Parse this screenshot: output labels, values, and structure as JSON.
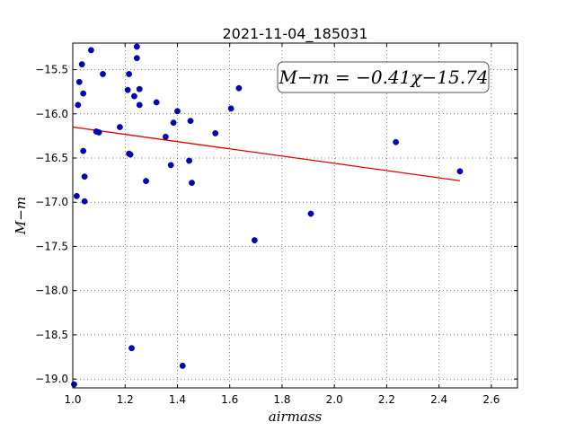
{
  "chart_data": {
    "type": "scatter",
    "title": "2021-11-04_185031",
    "xlabel": "airmass",
    "ylabel": "M−m",
    "xlim": [
      1.0,
      2.7
    ],
    "ylim": [
      -19.1,
      -15.2
    ],
    "y_inverted": true,
    "grid": true,
    "x_ticks": [
      "1.0",
      "1.2",
      "1.4",
      "1.6",
      "1.8",
      "2.0",
      "2.2",
      "2.4",
      "2.6"
    ],
    "x_tick_values": [
      1.0,
      1.2,
      1.4,
      1.6,
      1.8,
      2.0,
      2.2,
      2.4,
      2.6
    ],
    "y_ticks": [
      "−15.5",
      "−16.0",
      "−16.5",
      "−17.0",
      "−17.5",
      "−18.0",
      "−18.5",
      "−19.0"
    ],
    "y_tick_values": [
      -15.5,
      -16.0,
      -16.5,
      -17.0,
      -17.5,
      -18.0,
      -18.5,
      -19.0
    ],
    "annotation": "M−m = −0.41χ−15.74",
    "annotation_placement": "top-right",
    "point_color": "#0000cc",
    "fit_color": "#e00000",
    "fit": {
      "slope": -0.41,
      "intercept": -15.74,
      "x_range": [
        1.0,
        2.48
      ]
    },
    "x": [
      1.005,
      1.015,
      1.02,
      1.025,
      1.035,
      1.04,
      1.04,
      1.045,
      1.045,
      1.07,
      1.09,
      1.1,
      1.115,
      1.18,
      1.21,
      1.215,
      1.215,
      1.22,
      1.225,
      1.235,
      1.245,
      1.245,
      1.255,
      1.255,
      1.28,
      1.32,
      1.355,
      1.375,
      1.385,
      1.4,
      1.42,
      1.445,
      1.45,
      1.455,
      1.545,
      1.605,
      1.635,
      1.695,
      1.91,
      2.235,
      2.48
    ],
    "y": [
      -19.06,
      -16.93,
      -15.9,
      -15.64,
      -15.44,
      -15.77,
      -16.42,
      -16.71,
      -16.99,
      -15.28,
      -16.2,
      -16.21,
      -15.55,
      -16.15,
      -15.73,
      -16.45,
      -15.55,
      -16.46,
      -18.65,
      -15.8,
      -15.24,
      -15.37,
      -15.72,
      -15.9,
      -16.76,
      -15.87,
      -16.26,
      -16.58,
      -16.1,
      -15.97,
      -18.85,
      -16.53,
      -16.08,
      -16.78,
      -16.22,
      -15.94,
      -15.71,
      -17.43,
      -17.13,
      -16.32,
      -16.65
    ]
  }
}
